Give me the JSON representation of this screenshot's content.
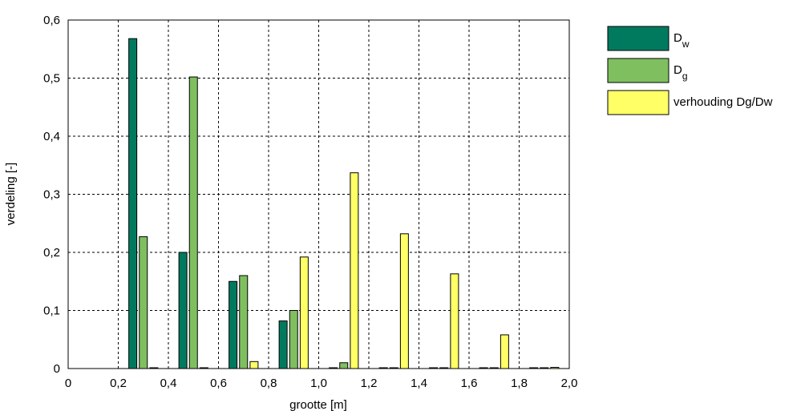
{
  "chart_data": {
    "type": "bar",
    "xlabel": "grootte [m]",
    "ylabel": "verdeling [-]",
    "xlim": [
      0,
      2.0
    ],
    "ylim": [
      0,
      0.6
    ],
    "grid": true,
    "legend_position": "right",
    "x_ticks": [
      "0",
      "0,2",
      "0,4",
      "0,6",
      "0,8",
      "1,0",
      "1,2",
      "1,4",
      "1,6",
      "1,8",
      "2,0"
    ],
    "y_ticks": [
      "0",
      "0,1",
      "0,2",
      "0,3",
      "0,4",
      "0,5",
      "0,6"
    ],
    "groups": [
      0.3,
      0.5,
      0.7,
      0.9,
      1.1,
      1.3,
      1.5,
      1.7,
      1.9
    ],
    "series": [
      {
        "name": "D",
        "subscript": "w",
        "color": "#007A5E",
        "values": [
          0.568,
          0.2,
          0.15,
          0.082,
          0,
          0,
          0,
          0,
          0
        ]
      },
      {
        "name": "D",
        "subscript": "g",
        "color": "#7FBF60",
        "values": [
          0.227,
          0.502,
          0.16,
          0.1,
          0.01,
          0,
          0,
          0,
          0
        ]
      },
      {
        "name": "verhouding Dg/Dw",
        "subscript": "",
        "color": "#FFFF66",
        "values": [
          0,
          0,
          0.012,
          0.192,
          0.337,
          0.232,
          0.163,
          0.058,
          0.002
        ]
      }
    ]
  }
}
